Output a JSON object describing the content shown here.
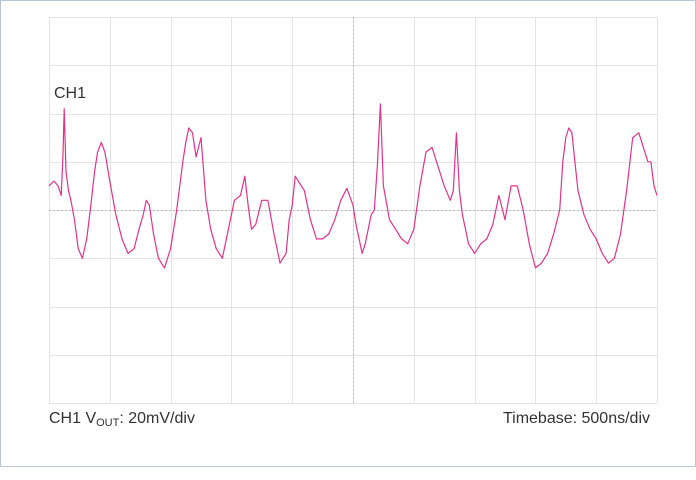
{
  "chart_data": {
    "type": "line",
    "channel_label": "CH1",
    "vertical_scale": {
      "prefix": "CH1 V",
      "subscript": "OUT",
      "suffix": ": 20mV/div"
    },
    "timebase": "Timebase: 500ns/div",
    "grid": true,
    "divisions": {
      "x": 10,
      "y": 8
    },
    "trace_color": "#e0338a",
    "x_unit": "div",
    "y_unit": "div",
    "series": [
      {
        "x": [
          0.0,
          0.08,
          0.15,
          0.2,
          0.23,
          0.25,
          0.28,
          0.32,
          0.36,
          0.42,
          0.48,
          0.55,
          0.62,
          0.68,
          0.75,
          0.8,
          0.86,
          0.92,
          1.0,
          1.1,
          1.2,
          1.3,
          1.4,
          1.48,
          1.55,
          1.6,
          1.65,
          1.72,
          1.8,
          1.9,
          2.0,
          2.1,
          2.2,
          2.25,
          2.3,
          2.36,
          2.42,
          2.5,
          2.58,
          2.66,
          2.75,
          2.85,
          2.95,
          3.05,
          3.15,
          3.22,
          3.28,
          3.33,
          3.4,
          3.5,
          3.6,
          3.7,
          3.8,
          3.9,
          3.95,
          4.0,
          4.05,
          4.1,
          4.2,
          4.3,
          4.4,
          4.5,
          4.6,
          4.7,
          4.8,
          4.9,
          5.0,
          5.05,
          5.1,
          5.15,
          5.2,
          5.25,
          5.3,
          5.35,
          5.4,
          5.45,
          5.5,
          5.6,
          5.7,
          5.8,
          5.9,
          6.0,
          6.1,
          6.2,
          6.3,
          6.4,
          6.5,
          6.6,
          6.65,
          6.7,
          6.75,
          6.8,
          6.85,
          6.9,
          6.95,
          7.0,
          7.1,
          7.2,
          7.3,
          7.4,
          7.5,
          7.6,
          7.7,
          7.8,
          7.9,
          8.0,
          8.1,
          8.2,
          8.3,
          8.4,
          8.45,
          8.5,
          8.55,
          8.6,
          8.65,
          8.7,
          8.8,
          8.9,
          9.0,
          9.1,
          9.2,
          9.3,
          9.4,
          9.5,
          9.6,
          9.7,
          9.8,
          9.85,
          9.9,
          9.95,
          10.0
        ],
        "y": [
          0.5,
          0.6,
          0.5,
          0.3,
          1.15,
          2.1,
          0.8,
          0.4,
          0.2,
          -0.2,
          -0.8,
          -1.0,
          -0.6,
          0.0,
          0.8,
          1.2,
          1.4,
          1.2,
          0.6,
          -0.1,
          -0.6,
          -0.9,
          -0.8,
          -0.4,
          -0.1,
          0.2,
          0.1,
          -0.5,
          -1.0,
          -1.2,
          -0.8,
          0.0,
          1.0,
          1.4,
          1.7,
          1.6,
          1.1,
          1.5,
          0.2,
          -0.4,
          -0.8,
          -1.0,
          -0.4,
          0.2,
          0.3,
          0.7,
          0.05,
          -0.4,
          -0.3,
          0.2,
          0.2,
          -0.5,
          -1.1,
          -0.9,
          -0.2,
          0.1,
          0.7,
          0.6,
          0.4,
          -0.2,
          -0.6,
          -0.6,
          -0.5,
          -0.2,
          0.2,
          0.45,
          0.1,
          -0.3,
          -0.6,
          -0.9,
          -0.7,
          -0.4,
          -0.1,
          0.0,
          0.9,
          2.2,
          0.5,
          -0.2,
          -0.4,
          -0.6,
          -0.7,
          -0.4,
          0.5,
          1.2,
          1.3,
          0.9,
          0.5,
          0.2,
          0.4,
          1.6,
          0.4,
          -0.1,
          -0.4,
          -0.7,
          -0.8,
          -0.9,
          -0.7,
          -0.6,
          -0.3,
          0.3,
          -0.2,
          0.5,
          0.5,
          0.0,
          -0.7,
          -1.2,
          -1.1,
          -0.9,
          -0.5,
          0.0,
          1.0,
          1.5,
          1.7,
          1.6,
          1.0,
          0.4,
          -0.1,
          -0.4,
          -0.6,
          -0.9,
          -1.1,
          -1.0,
          -0.5,
          0.4,
          1.5,
          1.6,
          1.2,
          1.0,
          1.0,
          0.5,
          0.3
        ]
      }
    ]
  }
}
